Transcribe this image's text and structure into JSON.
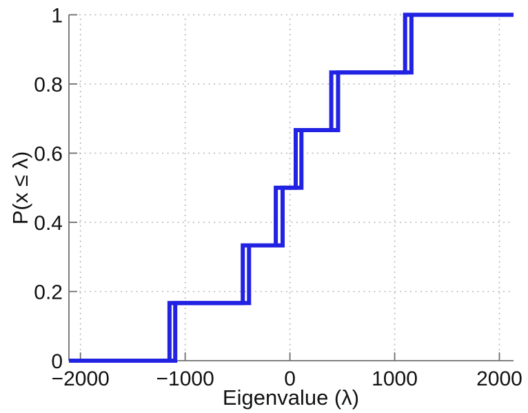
{
  "chart_data": {
    "type": "line",
    "subtype": "ecdf-step",
    "title": "",
    "xlabel": "Eigenvalue (λ)",
    "ylabel": "P(x ≤ λ)",
    "xlim": [
      -2110,
      2135
    ],
    "ylim": [
      0,
      1
    ],
    "x_ticks": [
      {
        "v": -2000,
        "label": "−2000"
      },
      {
        "v": -1000,
        "label": "−1000"
      },
      {
        "v": 0,
        "label": "0"
      },
      {
        "v": 1000,
        "label": "1000"
      },
      {
        "v": 2000,
        "label": "2000"
      }
    ],
    "y_ticks": [
      {
        "v": 0,
        "label": "0"
      },
      {
        "v": 0.2,
        "label": "0.2"
      },
      {
        "v": 0.4,
        "label": "0.4"
      },
      {
        "v": 0.6,
        "label": "0.6"
      },
      {
        "v": 0.8,
        "label": "0.8"
      },
      {
        "v": 1,
        "label": "1"
      }
    ],
    "grid": {
      "style": "dotted",
      "color": "#b5b5b5"
    },
    "legend_position": "none",
    "axis_color": "#6e6e6e",
    "line_color": "#2222e2",
    "line_width": 6,
    "n_points_per_series": 6,
    "step_rise": 0.1667,
    "y_levels_after_jump": [
      0.1667,
      0.3333,
      0.5,
      0.6667,
      0.8333,
      1
    ],
    "series": [
      {
        "name": "ecdf-1",
        "jump_x": [
          -1150,
          -450,
          -135,
          55,
          395,
          1100
        ]
      },
      {
        "name": "ecdf-2",
        "jump_x": [
          -1095,
          -390,
          -70,
          110,
          460,
          1160
        ]
      }
    ]
  }
}
